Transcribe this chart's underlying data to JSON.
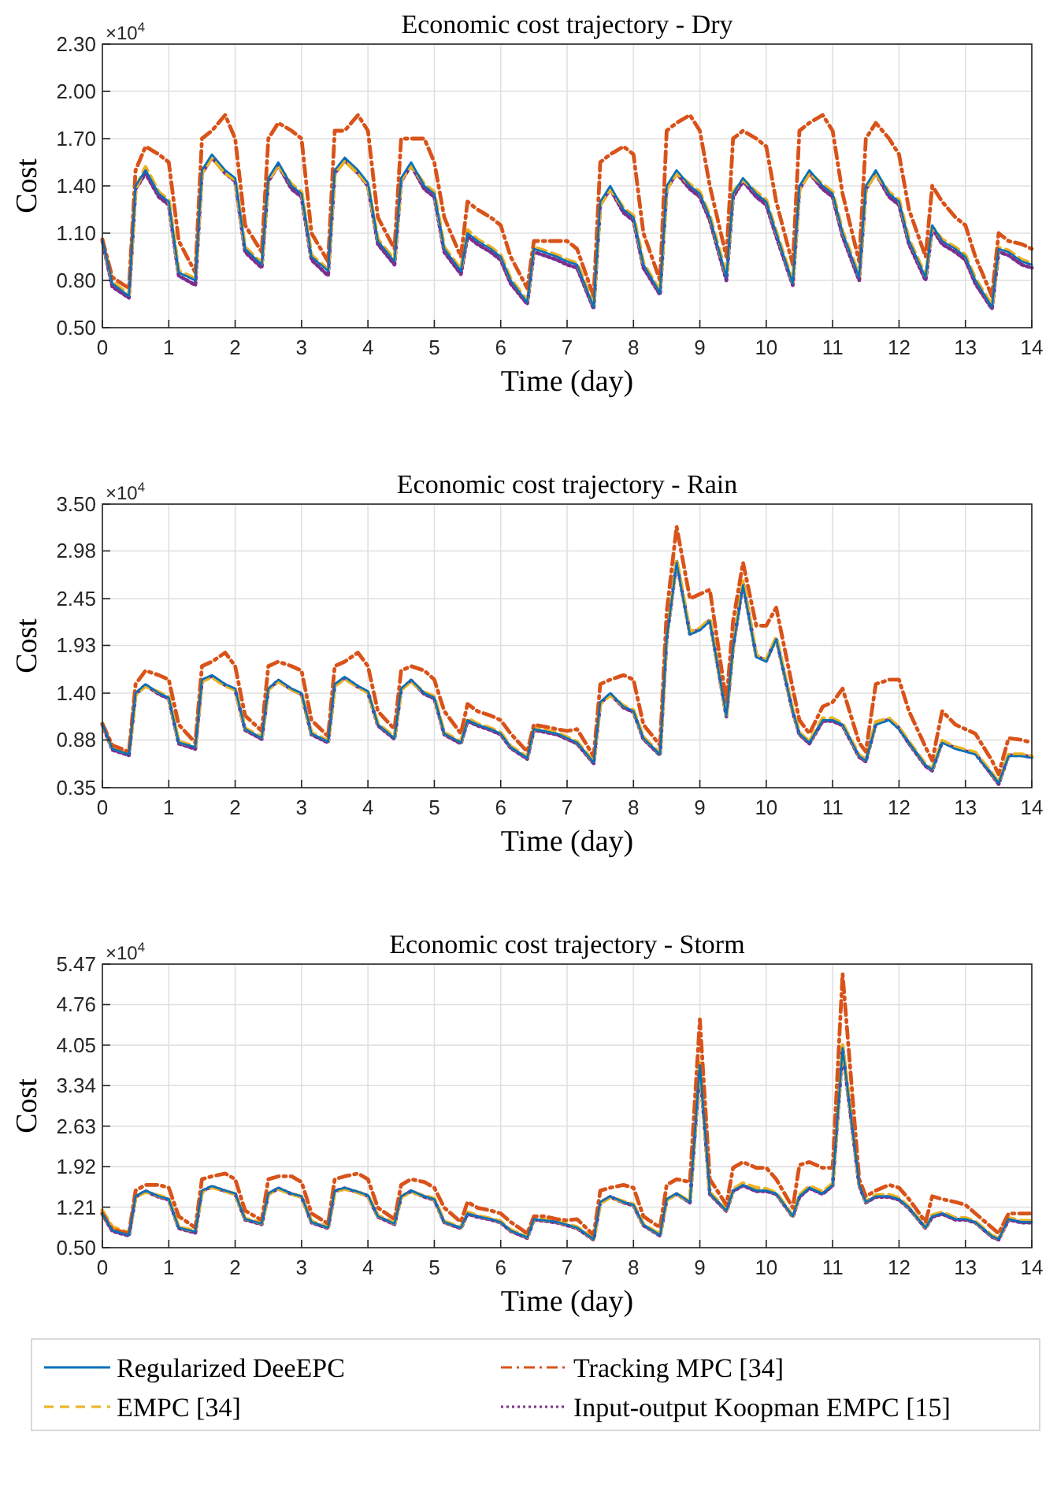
{
  "chart_data": [
    {
      "type": "line",
      "title": "Economic cost trajectory - Dry",
      "xlabel": "Time (day)",
      "ylabel": "Cost",
      "annotations": [
        "×10$^{4}$"
      ],
      "grid": true,
      "xlim": [
        0,
        14
      ],
      "xticks": [
        0,
        1,
        2,
        3,
        4,
        5,
        6,
        7,
        8,
        9,
        10,
        11,
        12,
        13,
        14
      ],
      "ylim": [
        0.5,
        2.3
      ],
      "yticks": [
        {
          "value": 0.5,
          "label": "0.50"
        },
        {
          "value": 0.8,
          "label": "0.80"
        },
        {
          "value": 1.1,
          "label": "1.10"
        },
        {
          "value": 1.4,
          "label": "1.40"
        },
        {
          "value": 1.7,
          "label": "1.70"
        },
        {
          "value": 2.0,
          "label": "2.00"
        },
        {
          "value": 2.3,
          "label": "2.30"
        }
      ],
      "x": [
        0,
        0.15,
        0.4,
        0.5,
        0.65,
        0.85,
        1,
        1.15,
        1.4,
        1.5,
        1.65,
        1.85,
        2,
        2.15,
        2.4,
        2.5,
        2.65,
        2.85,
        3,
        3.15,
        3.4,
        3.5,
        3.65,
        3.85,
        4,
        4.15,
        4.4,
        4.5,
        4.65,
        4.85,
        5,
        5.15,
        5.4,
        5.5,
        5.65,
        5.85,
        6,
        6.15,
        6.4,
        6.5,
        6.65,
        6.85,
        7,
        7.15,
        7.4,
        7.5,
        7.65,
        7.85,
        8,
        8.15,
        8.4,
        8.5,
        8.65,
        8.85,
        9,
        9.15,
        9.4,
        9.5,
        9.65,
        9.85,
        10,
        10.15,
        10.4,
        10.5,
        10.65,
        10.85,
        11,
        11.15,
        11.4,
        11.5,
        11.65,
        11.85,
        12,
        12.15,
        12.4,
        12.5,
        12.65,
        12.85,
        13,
        13.15,
        13.4,
        13.5,
        13.65,
        13.85,
        14
      ],
      "series": [
        {
          "color": "#0072bd",
          "line_style": "solid",
          "values": [
            1.06,
            0.78,
            0.7,
            1.4,
            1.5,
            1.35,
            1.3,
            0.85,
            0.8,
            1.5,
            1.6,
            1.5,
            1.45,
            1.0,
            0.9,
            1.45,
            1.55,
            1.4,
            1.35,
            0.95,
            0.86,
            1.5,
            1.58,
            1.5,
            1.42,
            1.05,
            0.92,
            1.45,
            1.55,
            1.4,
            1.35,
            1.0,
            0.86,
            1.1,
            1.05,
            1.0,
            0.95,
            0.8,
            0.66,
            1.0,
            0.98,
            0.95,
            0.92,
            0.9,
            0.63,
            1.3,
            1.4,
            1.25,
            1.2,
            0.9,
            0.72,
            1.4,
            1.5,
            1.4,
            1.35,
            1.2,
            0.82,
            1.35,
            1.45,
            1.35,
            1.3,
            1.1,
            0.78,
            1.4,
            1.5,
            1.4,
            1.35,
            1.1,
            0.82,
            1.4,
            1.5,
            1.35,
            1.3,
            1.05,
            0.82,
            1.15,
            1.05,
            1.0,
            0.95,
            0.8,
            0.63,
            1.0,
            0.98,
            0.92,
            0.9
          ]
        },
        {
          "color": "#d95319",
          "line_style": "dashdot",
          "values": [
            1.06,
            0.82,
            0.75,
            1.5,
            1.65,
            1.6,
            1.55,
            1.05,
            0.85,
            1.7,
            1.75,
            1.85,
            1.7,
            1.15,
            0.98,
            1.7,
            1.8,
            1.75,
            1.7,
            1.1,
            0.92,
            1.75,
            1.75,
            1.85,
            1.75,
            1.2,
            1.0,
            1.7,
            1.7,
            1.7,
            1.55,
            1.2,
            0.95,
            1.3,
            1.25,
            1.2,
            1.15,
            0.95,
            0.75,
            1.05,
            1.05,
            1.05,
            1.05,
            1.0,
            0.7,
            1.55,
            1.6,
            1.65,
            1.6,
            1.1,
            0.8,
            1.75,
            1.8,
            1.85,
            1.75,
            1.4,
            0.95,
            1.7,
            1.75,
            1.7,
            1.65,
            1.3,
            0.9,
            1.75,
            1.8,
            1.85,
            1.75,
            1.35,
            0.92,
            1.7,
            1.8,
            1.7,
            1.6,
            1.25,
            0.95,
            1.4,
            1.3,
            1.2,
            1.15,
            0.95,
            0.7,
            1.1,
            1.05,
            1.03,
            1.0
          ]
        },
        {
          "color": "#edb120",
          "line_style": "dashed",
          "values": [
            1.06,
            0.79,
            0.71,
            1.38,
            1.52,
            1.36,
            1.31,
            0.86,
            0.81,
            1.48,
            1.58,
            1.48,
            1.44,
            1.01,
            0.91,
            1.44,
            1.53,
            1.41,
            1.36,
            0.96,
            0.87,
            1.48,
            1.56,
            1.48,
            1.41,
            1.06,
            0.93,
            1.44,
            1.53,
            1.41,
            1.36,
            1.01,
            0.87,
            1.12,
            1.06,
            1.01,
            0.96,
            0.81,
            0.67,
            1.01,
            0.99,
            0.96,
            0.93,
            0.91,
            0.64,
            1.28,
            1.38,
            1.26,
            1.21,
            0.91,
            0.73,
            1.38,
            1.48,
            1.41,
            1.36,
            1.21,
            0.83,
            1.36,
            1.44,
            1.36,
            1.31,
            1.11,
            0.79,
            1.38,
            1.48,
            1.41,
            1.36,
            1.11,
            0.83,
            1.38,
            1.48,
            1.36,
            1.31,
            1.06,
            0.83,
            1.14,
            1.06,
            1.01,
            0.96,
            0.81,
            0.64,
            1.01,
            0.99,
            0.93,
            0.91
          ]
        },
        {
          "color": "#7e2f8e",
          "line_style": "dotted",
          "values": [
            1.05,
            0.76,
            0.69,
            1.38,
            1.48,
            1.33,
            1.28,
            0.83,
            0.77,
            1.48,
            1.58,
            1.48,
            1.43,
            0.98,
            0.88,
            1.43,
            1.53,
            1.38,
            1.33,
            0.93,
            0.83,
            1.48,
            1.56,
            1.48,
            1.4,
            1.03,
            0.9,
            1.43,
            1.53,
            1.38,
            1.33,
            0.98,
            0.84,
            1.08,
            1.03,
            0.98,
            0.93,
            0.78,
            0.65,
            0.98,
            0.96,
            0.93,
            0.9,
            0.88,
            0.62,
            1.28,
            1.38,
            1.23,
            1.18,
            0.88,
            0.71,
            1.38,
            1.48,
            1.38,
            1.33,
            1.18,
            0.8,
            1.33,
            1.43,
            1.33,
            1.28,
            1.08,
            0.77,
            1.38,
            1.48,
            1.38,
            1.33,
            1.08,
            0.8,
            1.38,
            1.48,
            1.33,
            1.28,
            1.03,
            0.8,
            1.13,
            1.03,
            0.98,
            0.93,
            0.78,
            0.62,
            0.98,
            0.96,
            0.9,
            0.88
          ]
        }
      ]
    },
    {
      "type": "line",
      "title": "Economic cost trajectory - Rain",
      "xlabel": "Time (day)",
      "ylabel": "Cost",
      "annotations": [
        "×10$^{4}$"
      ],
      "grid": true,
      "xlim": [
        0,
        14
      ],
      "xticks": [
        0,
        1,
        2,
        3,
        4,
        5,
        6,
        7,
        8,
        9,
        10,
        11,
        12,
        13,
        14
      ],
      "ylim": [
        0.35,
        3.5
      ],
      "yticks": [
        0.35,
        0.88,
        {
          "value": 1.4,
          "label": "1.40"
        },
        1.93,
        2.45,
        2.98,
        {
          "value": 3.5,
          "label": "3.50"
        }
      ],
      "x": [
        0,
        0.15,
        0.4,
        0.5,
        0.65,
        0.85,
        1,
        1.15,
        1.4,
        1.5,
        1.65,
        1.85,
        2,
        2.15,
        2.4,
        2.5,
        2.65,
        2.85,
        3,
        3.15,
        3.4,
        3.5,
        3.65,
        3.85,
        4,
        4.15,
        4.4,
        4.5,
        4.65,
        4.85,
        5,
        5.15,
        5.4,
        5.5,
        5.65,
        5.85,
        6,
        6.15,
        6.4,
        6.5,
        6.65,
        6.85,
        7,
        7.15,
        7.4,
        7.5,
        7.65,
        7.85,
        8,
        8.15,
        8.4,
        8.5,
        8.65,
        8.85,
        9,
        9.15,
        9.4,
        9.5,
        9.65,
        9.85,
        10,
        10.15,
        10.4,
        10.5,
        10.65,
        10.85,
        11,
        11.15,
        11.4,
        11.5,
        11.65,
        11.85,
        12,
        12.15,
        12.4,
        12.5,
        12.65,
        12.85,
        13,
        13.15,
        13.4,
        13.5,
        13.65,
        13.85,
        14
      ],
      "series": [
        {
          "color": "#0072bd",
          "line_style": "solid",
          "values": [
            1.06,
            0.78,
            0.72,
            1.4,
            1.5,
            1.4,
            1.35,
            0.85,
            0.8,
            1.55,
            1.6,
            1.5,
            1.45,
            1.0,
            0.9,
            1.45,
            1.55,
            1.45,
            1.4,
            0.95,
            0.86,
            1.5,
            1.58,
            1.48,
            1.42,
            1.05,
            0.9,
            1.45,
            1.55,
            1.4,
            1.35,
            0.95,
            0.85,
            1.1,
            1.05,
            1.0,
            0.95,
            0.8,
            0.68,
            1.0,
            0.98,
            0.95,
            0.9,
            0.85,
            0.63,
            1.3,
            1.4,
            1.25,
            1.2,
            0.9,
            0.72,
            2.0,
            2.85,
            2.05,
            2.1,
            2.2,
            1.15,
            1.9,
            2.6,
            1.8,
            1.75,
            2.0,
            1.2,
            0.95,
            0.85,
            1.1,
            1.1,
            1.05,
            0.7,
            0.65,
            1.05,
            1.1,
            1.0,
            0.85,
            0.6,
            0.55,
            0.85,
            0.78,
            0.75,
            0.72,
            0.5,
            0.4,
            0.7,
            0.7,
            0.68
          ]
        },
        {
          "color": "#d95319",
          "line_style": "dashdot",
          "values": [
            1.06,
            0.82,
            0.75,
            1.5,
            1.65,
            1.6,
            1.55,
            1.05,
            0.85,
            1.7,
            1.75,
            1.85,
            1.7,
            1.15,
            0.98,
            1.7,
            1.75,
            1.7,
            1.65,
            1.1,
            0.92,
            1.7,
            1.75,
            1.85,
            1.7,
            1.2,
            1.0,
            1.65,
            1.7,
            1.65,
            1.55,
            1.2,
            0.95,
            1.28,
            1.2,
            1.15,
            1.1,
            0.95,
            0.75,
            1.05,
            1.03,
            1.0,
            0.98,
            1.0,
            0.7,
            1.5,
            1.55,
            1.6,
            1.55,
            1.05,
            0.82,
            2.3,
            3.25,
            2.45,
            2.5,
            2.55,
            1.3,
            2.2,
            2.85,
            2.15,
            2.15,
            2.35,
            1.45,
            1.1,
            0.95,
            1.25,
            1.3,
            1.45,
            0.85,
            0.75,
            1.5,
            1.55,
            1.55,
            1.2,
            0.8,
            0.65,
            1.2,
            1.05,
            1.0,
            0.95,
            0.65,
            0.5,
            0.9,
            0.88,
            0.85
          ]
        },
        {
          "color": "#edb120",
          "line_style": "dashed",
          "values": [
            1.06,
            0.79,
            0.73,
            1.38,
            1.48,
            1.41,
            1.36,
            0.86,
            0.81,
            1.53,
            1.58,
            1.48,
            1.44,
            1.01,
            0.91,
            1.44,
            1.53,
            1.44,
            1.39,
            0.96,
            0.87,
            1.48,
            1.56,
            1.47,
            1.41,
            1.06,
            0.91,
            1.44,
            1.53,
            1.41,
            1.36,
            0.96,
            0.86,
            1.12,
            1.06,
            1.01,
            0.96,
            0.81,
            0.69,
            1.01,
            0.99,
            0.96,
            0.91,
            0.86,
            0.64,
            1.28,
            1.38,
            1.26,
            1.21,
            0.91,
            0.73,
            2.02,
            2.88,
            2.08,
            2.12,
            2.22,
            1.16,
            1.92,
            2.65,
            1.82,
            1.77,
            2.02,
            1.21,
            0.96,
            0.86,
            1.12,
            1.12,
            1.06,
            0.71,
            0.66,
            1.08,
            1.12,
            1.02,
            0.86,
            0.61,
            0.56,
            0.87,
            0.8,
            0.77,
            0.74,
            0.51,
            0.41,
            0.72,
            0.72,
            0.7
          ]
        },
        {
          "color": "#7e2f8e",
          "line_style": "dotted",
          "values": [
            1.05,
            0.77,
            0.71,
            1.39,
            1.49,
            1.39,
            1.34,
            0.84,
            0.78,
            1.54,
            1.59,
            1.49,
            1.44,
            0.99,
            0.89,
            1.44,
            1.54,
            1.44,
            1.39,
            0.94,
            0.85,
            1.49,
            1.57,
            1.47,
            1.41,
            1.04,
            0.89,
            1.44,
            1.54,
            1.39,
            1.34,
            0.94,
            0.84,
            1.09,
            1.04,
            0.99,
            0.94,
            0.79,
            0.67,
            0.99,
            0.97,
            0.94,
            0.89,
            0.84,
            0.62,
            1.29,
            1.39,
            1.24,
            1.19,
            0.89,
            0.71,
            2.01,
            2.86,
            2.06,
            2.11,
            2.21,
            1.14,
            1.91,
            2.62,
            1.81,
            1.76,
            2.01,
            1.19,
            0.94,
            0.84,
            1.09,
            1.09,
            1.04,
            0.69,
            0.64,
            1.06,
            1.11,
            1.01,
            0.84,
            0.59,
            0.54,
            0.86,
            0.79,
            0.76,
            0.73,
            0.49,
            0.39,
            0.71,
            0.71,
            0.69
          ]
        }
      ]
    },
    {
      "type": "line",
      "title": "Economic cost trajectory - Storm",
      "xlabel": "Time (day)",
      "ylabel": "Cost",
      "annotations": [
        "×10$^{4}$"
      ],
      "grid": true,
      "legend": "bottom",
      "xlim": [
        0,
        14
      ],
      "xticks": [
        0,
        1,
        2,
        3,
        4,
        5,
        6,
        7,
        8,
        9,
        10,
        11,
        12,
        13,
        14
      ],
      "ylim": [
        0.5,
        5.47
      ],
      "yticks": [
        {
          "value": 0.5,
          "label": "0.50"
        },
        1.21,
        1.92,
        2.63,
        3.34,
        4.05,
        4.76,
        5.47
      ],
      "x": [
        0,
        0.15,
        0.4,
        0.5,
        0.65,
        0.85,
        1,
        1.15,
        1.4,
        1.5,
        1.65,
        1.85,
        2,
        2.15,
        2.4,
        2.5,
        2.65,
        2.85,
        3,
        3.15,
        3.4,
        3.5,
        3.65,
        3.85,
        4,
        4.15,
        4.4,
        4.5,
        4.65,
        4.85,
        5,
        5.15,
        5.4,
        5.5,
        5.65,
        5.85,
        6,
        6.15,
        6.4,
        6.5,
        6.65,
        6.85,
        7,
        7.15,
        7.4,
        7.5,
        7.65,
        7.85,
        8,
        8.15,
        8.4,
        8.5,
        8.65,
        8.85,
        9,
        9.15,
        9.4,
        9.5,
        9.65,
        9.85,
        10,
        10.15,
        10.4,
        10.5,
        10.65,
        10.85,
        11,
        11.15,
        11.4,
        11.5,
        11.65,
        11.85,
        12,
        12.15,
        12.4,
        12.5,
        12.65,
        12.85,
        13,
        13.15,
        13.4,
        13.5,
        13.65,
        13.85,
        14
      ],
      "series": [
        {
          "name": "Regularized DeeEPC",
          "color": "#0072bd",
          "line_style": "solid",
          "values": [
            1.1,
            0.8,
            0.72,
            1.4,
            1.5,
            1.4,
            1.35,
            0.85,
            0.78,
            1.5,
            1.58,
            1.5,
            1.45,
            1.0,
            0.92,
            1.45,
            1.55,
            1.45,
            1.4,
            0.95,
            0.85,
            1.5,
            1.55,
            1.48,
            1.42,
            1.05,
            0.92,
            1.4,
            1.5,
            1.4,
            1.35,
            0.95,
            0.85,
            1.1,
            1.05,
            1.0,
            0.95,
            0.8,
            0.68,
            1.0,
            0.98,
            0.95,
            0.9,
            0.85,
            0.65,
            1.3,
            1.4,
            1.3,
            1.25,
            0.9,
            0.72,
            1.35,
            1.45,
            1.3,
            3.7,
            1.45,
            1.15,
            1.5,
            1.6,
            1.5,
            1.5,
            1.45,
            1.05,
            1.4,
            1.55,
            1.45,
            1.6,
            4.0,
            1.6,
            1.3,
            1.4,
            1.4,
            1.35,
            1.2,
            0.85,
            1.05,
            1.1,
            1.0,
            1.0,
            0.95,
            0.7,
            0.65,
            1.0,
            0.95,
            0.95
          ]
        },
        {
          "name": "Tracking MPC [34]",
          "color": "#d95319",
          "line_style": "dashdot",
          "values": [
            1.1,
            0.82,
            0.75,
            1.5,
            1.6,
            1.6,
            1.55,
            1.05,
            0.85,
            1.7,
            1.75,
            1.8,
            1.7,
            1.15,
            0.98,
            1.7,
            1.75,
            1.75,
            1.65,
            1.1,
            0.92,
            1.7,
            1.75,
            1.8,
            1.7,
            1.2,
            1.0,
            1.6,
            1.7,
            1.65,
            1.55,
            1.2,
            0.95,
            1.3,
            1.2,
            1.15,
            1.1,
            0.95,
            0.75,
            1.05,
            1.05,
            1.0,
            0.98,
            1.0,
            0.72,
            1.5,
            1.55,
            1.6,
            1.55,
            1.05,
            0.85,
            1.6,
            1.7,
            1.65,
            4.5,
            1.7,
            1.25,
            1.9,
            2.0,
            1.9,
            1.9,
            1.7,
            1.2,
            1.95,
            2.0,
            1.9,
            1.9,
            5.3,
            1.7,
            1.4,
            1.5,
            1.6,
            1.55,
            1.35,
            0.95,
            1.4,
            1.35,
            1.3,
            1.25,
            1.1,
            0.85,
            0.75,
            1.1,
            1.1,
            1.1
          ]
        },
        {
          "name": "EMPC [34]",
          "color": "#edb120",
          "line_style": "dashed",
          "values": [
            1.15,
            0.86,
            0.76,
            1.38,
            1.48,
            1.41,
            1.36,
            0.86,
            0.79,
            1.48,
            1.56,
            1.49,
            1.44,
            1.01,
            0.93,
            1.44,
            1.53,
            1.44,
            1.39,
            0.96,
            0.86,
            1.48,
            1.53,
            1.47,
            1.41,
            1.06,
            0.93,
            1.39,
            1.48,
            1.41,
            1.36,
            0.96,
            0.86,
            1.12,
            1.06,
            1.01,
            0.96,
            0.81,
            0.69,
            1.01,
            0.99,
            0.96,
            0.91,
            0.86,
            0.66,
            1.28,
            1.38,
            1.31,
            1.26,
            0.91,
            0.73,
            1.34,
            1.44,
            1.31,
            3.75,
            1.47,
            1.16,
            1.52,
            1.63,
            1.55,
            1.53,
            1.46,
            1.06,
            1.42,
            1.58,
            1.48,
            1.62,
            4.05,
            1.62,
            1.31,
            1.42,
            1.43,
            1.37,
            1.21,
            0.86,
            1.07,
            1.12,
            1.02,
            1.02,
            0.96,
            0.71,
            0.66,
            1.02,
            0.97,
            0.97
          ]
        },
        {
          "name": "Input-output Koopman EMPC [15]",
          "color": "#7e2f8e",
          "line_style": "dotted",
          "values": [
            1.09,
            0.79,
            0.71,
            1.39,
            1.49,
            1.39,
            1.34,
            0.84,
            0.76,
            1.49,
            1.57,
            1.49,
            1.44,
            0.99,
            0.91,
            1.44,
            1.54,
            1.44,
            1.39,
            0.94,
            0.84,
            1.49,
            1.54,
            1.47,
            1.41,
            1.04,
            0.91,
            1.39,
            1.49,
            1.39,
            1.34,
            0.94,
            0.84,
            1.09,
            1.04,
            0.99,
            0.94,
            0.79,
            0.67,
            0.99,
            0.97,
            0.94,
            0.89,
            0.84,
            0.64,
            1.29,
            1.39,
            1.29,
            1.24,
            0.89,
            0.71,
            1.34,
            1.44,
            1.29,
            3.68,
            1.44,
            1.14,
            1.49,
            1.59,
            1.49,
            1.49,
            1.44,
            1.04,
            1.39,
            1.54,
            1.44,
            1.59,
            3.98,
            1.59,
            1.29,
            1.39,
            1.39,
            1.34,
            1.19,
            0.84,
            1.04,
            1.09,
            0.99,
            0.99,
            0.94,
            0.69,
            0.64,
            0.99,
            0.94,
            0.94
          ]
        }
      ]
    }
  ]
}
